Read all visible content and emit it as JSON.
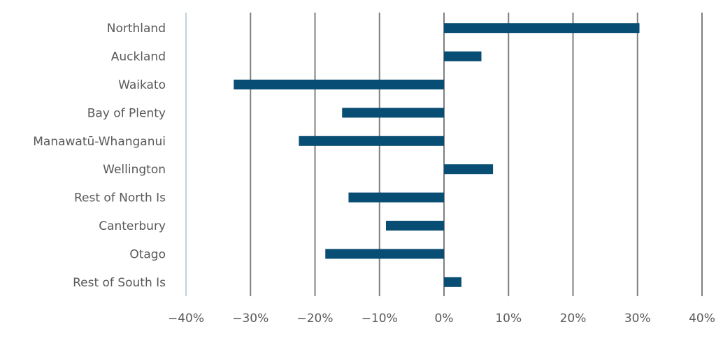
{
  "chart_data": {
    "type": "bar",
    "orientation": "horizontal",
    "title": "",
    "xlabel": "",
    "ylabel": "",
    "categories": [
      "Northland",
      "Auckland",
      "Waikato",
      "Bay of Plenty",
      "Manawatū-Whanganui",
      "Wellington",
      "Rest of North Is",
      "Canterbury",
      "Otago",
      "Rest of South Is"
    ],
    "values": [
      30.3,
      5.8,
      -32.6,
      -15.8,
      -22.5,
      7.6,
      -14.8,
      -9.0,
      -18.4,
      2.7
    ],
    "xlim": [
      -40,
      40
    ],
    "xticks": [
      -40,
      -30,
      -20,
      -10,
      0,
      10,
      20,
      30,
      40
    ],
    "xtick_labels": [
      "−40%",
      "−30%",
      "−20%",
      "−10%",
      "0%",
      "10%",
      "20%",
      "30%",
      "40%"
    ],
    "grid": "vertical",
    "legend": "none",
    "colors": {
      "bar": "#084D73",
      "grid": "#7f7f7f",
      "zero_line": "#7f7f7f",
      "axis_left": "#bfd3e0",
      "text": "#595959"
    }
  }
}
